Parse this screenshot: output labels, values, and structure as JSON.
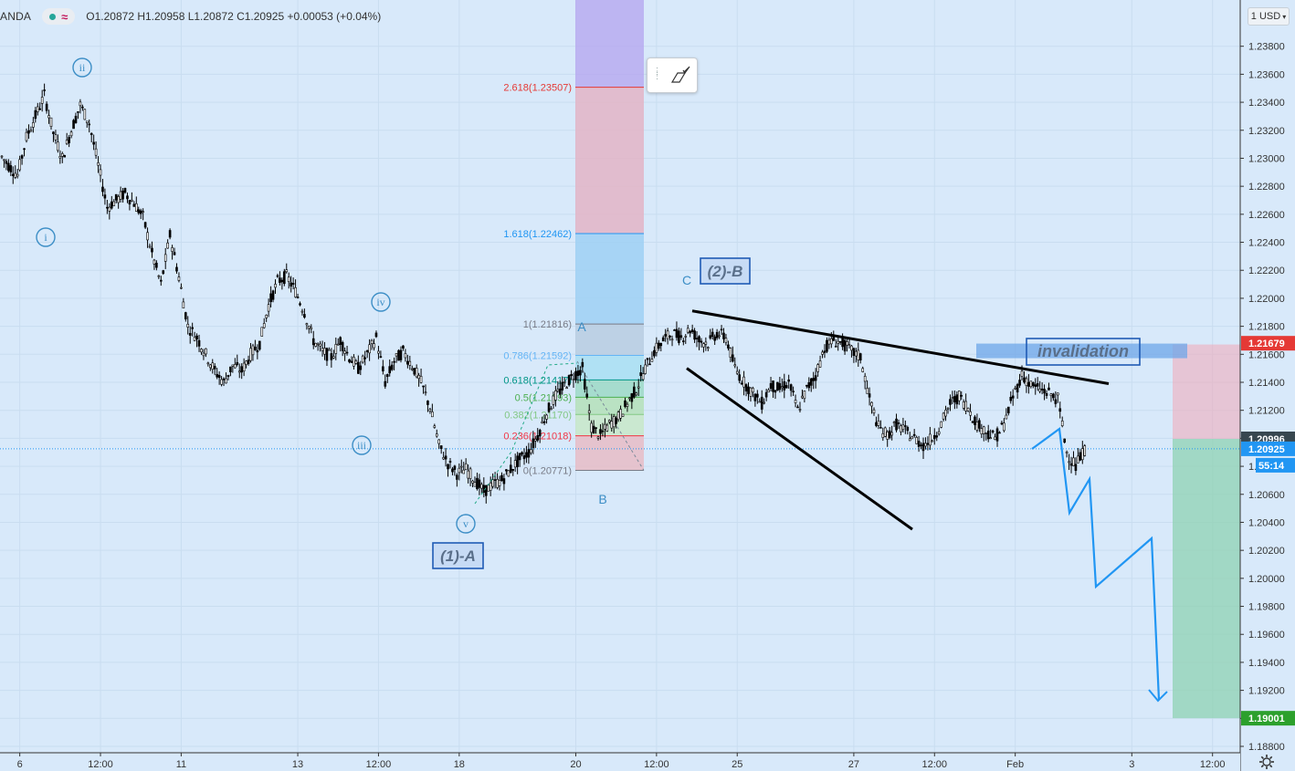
{
  "header": {
    "symbol": "ANDA",
    "ohlc_text": "O1.20872  H1.20958  L1.20872  C1.20925  +0.00053 (+0.04%)",
    "wave_icon": "elliott-wave-icon"
  },
  "currency_label": "1 USD",
  "x_axis_labels": [
    {
      "label": "6",
      "idx": 2
    },
    {
      "label": "12:00",
      "idx": 11
    },
    {
      "label": "11",
      "idx": 20
    },
    {
      "label": "13",
      "idx": 33
    },
    {
      "label": "12:00",
      "idx": 42
    },
    {
      "label": "18",
      "idx": 51
    },
    {
      "label": "20",
      "idx": 64
    },
    {
      "label": "12:00",
      "idx": 73
    },
    {
      "label": "25",
      "idx": 82
    },
    {
      "label": "27",
      "idx": 95
    },
    {
      "label": "12:00",
      "idx": 104
    },
    {
      "label": "Feb",
      "idx": 113
    },
    {
      "label": "3",
      "idx": 126
    },
    {
      "label": "12:00",
      "idx": 135
    }
  ],
  "price_badges": [
    {
      "value": "1.21679",
      "price": 1.21679,
      "color": "#e53935"
    },
    {
      "value": "1.20996",
      "price": 1.20996,
      "color": "#37474f"
    },
    {
      "value": "1.20925",
      "price": 1.20925,
      "color": "#2196f3",
      "sub": "55:14"
    },
    {
      "value": "1.19001",
      "price": 1.19001,
      "color": "#2ca02c"
    }
  ],
  "fibonacci": {
    "levels": [
      {
        "label": "2.618(1.23507)",
        "price": 1.23507,
        "color": "#e53935"
      },
      {
        "label": "1.618(1.22462)",
        "price": 1.22462,
        "color": "#2196f3"
      },
      {
        "label": "1(1.21816)",
        "price": 1.21816,
        "color": "#787b86"
      },
      {
        "label": "0.786(1.21592)",
        "price": 1.21592,
        "color": "#64b5f6"
      },
      {
        "label": "0.618(1.21417)",
        "price": 1.21417,
        "color": "#009688"
      },
      {
        "label": "0.5(1.21293)",
        "price": 1.21293,
        "color": "#4caf50"
      },
      {
        "label": "0.382(1.21170)",
        "price": 1.2117,
        "color": "#81c784"
      },
      {
        "label": "0.236(1.21018)",
        "price": 1.21018,
        "color": "#f23645"
      },
      {
        "label": "0(1.20771)",
        "price": 1.20771,
        "color": "#787b86"
      }
    ]
  },
  "labels": {
    "wave_i": "i",
    "wave_ii": "ii",
    "wave_iii": "iii",
    "wave_iv": "iv",
    "wave_v": "v",
    "wave_1A": "(1)-A",
    "wave_2B": "(2)-B",
    "point_A": "A",
    "point_B": "B",
    "point_C": "C",
    "invalidation": "invalidation"
  },
  "chart_data": {
    "type": "candlestick",
    "symbol": "ANDA",
    "quote": {
      "open": 1.20872,
      "high": 1.20958,
      "low": 1.20872,
      "close": 1.20925,
      "change": 0.00053,
      "change_pct": 0.04
    },
    "ylim": [
      1.188,
      1.24
    ],
    "y_ticks": [
      1.188,
      1.19,
      1.192,
      1.194,
      1.196,
      1.198,
      1.2,
      1.202,
      1.204,
      1.206,
      1.208,
      1.21,
      1.212,
      1.214,
      1.216,
      1.218,
      1.22,
      1.222,
      1.224,
      1.226,
      1.228,
      1.23,
      1.232,
      1.234,
      1.236,
      1.238
    ],
    "close_series_approx": [
      1.2295,
      1.2288,
      1.2315,
      1.233,
      1.2345,
      1.2318,
      1.23,
      1.232,
      1.2338,
      1.2325,
      1.2295,
      1.2265,
      1.227,
      1.2275,
      1.2268,
      1.2258,
      1.2232,
      1.221,
      1.2245,
      1.2215,
      1.218,
      1.2172,
      1.216,
      1.2148,
      1.214,
      1.2152,
      1.2148,
      1.216,
      1.2168,
      1.2195,
      1.2212,
      1.2216,
      1.2205,
      1.219,
      1.217,
      1.2162,
      1.2158,
      1.217,
      1.2158,
      1.215,
      1.216,
      1.2172,
      1.214,
      1.2155,
      1.2162,
      1.2152,
      1.214,
      1.2122,
      1.2095,
      1.2082,
      1.2075,
      1.2078,
      1.207,
      1.2062,
      1.2067,
      1.207,
      1.2078,
      1.2085,
      1.209,
      1.2102,
      1.2118,
      1.213,
      1.2138,
      1.2145,
      1.215,
      1.2108,
      1.2102,
      1.211,
      1.2115,
      1.2125,
      1.2135,
      1.215,
      1.2162,
      1.217,
      1.2175,
      1.2172,
      1.2178,
      1.217,
      1.2168,
      1.2175,
      1.2172,
      1.215,
      1.214,
      1.2132,
      1.2125,
      1.2138,
      1.2135,
      1.214,
      1.212,
      1.2135,
      1.2145,
      1.2165,
      1.217,
      1.2168,
      1.2162,
      1.2158,
      1.2128,
      1.2108,
      1.2102,
      1.211,
      1.2105,
      1.21,
      1.2095,
      1.21,
      1.211,
      1.2125,
      1.213,
      1.2122,
      1.211,
      1.2105,
      1.21,
      1.211,
      1.213,
      1.2145,
      1.2138,
      1.2135,
      1.2132,
      1.2128,
      1.209,
      1.208,
      1.2092
    ],
    "projection_path_approx": [
      [
        120.5,
        1.2092
      ],
      [
        122.2,
        1.2111
      ],
      [
        123.0,
        1.2048
      ],
      [
        124.8,
        1.2073
      ],
      [
        125.4,
        1.1997
      ],
      [
        130.7,
        1.203
      ],
      [
        131.8,
        1.1917
      ],
      [
        132.1,
        1.1923
      ]
    ],
    "fib_retracement": {
      "from": 1.20771,
      "to": 1.21816
    },
    "invalidation_level": 1.2167,
    "target_level": 1.19001,
    "triangle_upper": [
      [
        84,
        1.2191
      ],
      [
        125,
        1.2139
      ]
    ],
    "triangle_lower": [
      [
        84,
        1.215
      ],
      [
        111,
        1.2035
      ]
    ]
  }
}
